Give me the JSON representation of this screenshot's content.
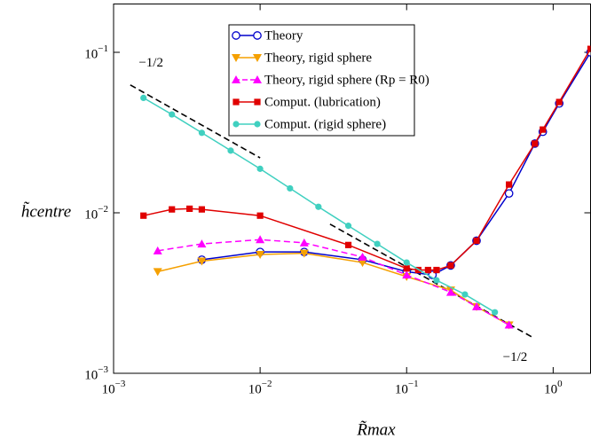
{
  "chart_data": {
    "type": "line",
    "x_label": "R̃max",
    "y_label": "h̃centre",
    "log_x": true,
    "log_y": true,
    "xlim": [
      0.001,
      1.8
    ],
    "ylim": [
      0.001,
      0.2
    ],
    "xticks": [
      {
        "value": 0.001,
        "label": "10−3"
      },
      {
        "value": 0.01,
        "label": "10−2"
      },
      {
        "value": 0.1,
        "label": "10−1"
      },
      {
        "value": 1,
        "label": "100"
      }
    ],
    "yticks": [
      {
        "value": 0.001,
        "label": "10−3"
      },
      {
        "value": 0.01,
        "label": "10−2"
      },
      {
        "value": 0.1,
        "label": "10−1"
      }
    ],
    "series": [
      {
        "name": "Theory",
        "color": "#0000cc",
        "marker": "circle-open",
        "dashed": false,
        "x": [
          0.004,
          0.01,
          0.02,
          0.05,
          0.1,
          0.15,
          0.2,
          0.3,
          0.5,
          0.75,
          0.85,
          1.1,
          1.8
        ],
        "values": [
          0.0051,
          0.0057,
          0.0057,
          0.0051,
          0.0043,
          0.0041,
          0.0047,
          0.0067,
          0.0132,
          0.027,
          0.032,
          0.048,
          0.1
        ]
      },
      {
        "name": "Theory, rigid sphere",
        "color": "#f5a000",
        "marker": "triangle-down",
        "dashed": false,
        "x": [
          0.002,
          0.004,
          0.01,
          0.02,
          0.05,
          0.1,
          0.2,
          0.3,
          0.5
        ],
        "values": [
          0.0043,
          0.005,
          0.0055,
          0.0056,
          0.0049,
          0.004,
          0.0033,
          0.0026,
          0.002
        ]
      },
      {
        "name": "Theory, rigid sphere (Rp = R0)",
        "color": "#ff00ff",
        "marker": "triangle-up",
        "dashed": true,
        "x": [
          0.002,
          0.004,
          0.01,
          0.02,
          0.05,
          0.1,
          0.2,
          0.3,
          0.5
        ],
        "values": [
          0.0058,
          0.0064,
          0.0068,
          0.0065,
          0.0053,
          0.0041,
          0.0032,
          0.0026,
          0.002
        ]
      },
      {
        "name": "Comput. (lubrication)",
        "color": "#e00000",
        "marker": "square",
        "dashed": false,
        "x": [
          0.0016,
          0.0025,
          0.0033,
          0.004,
          0.01,
          0.04,
          0.1,
          0.12,
          0.14,
          0.16,
          0.2,
          0.3,
          0.5,
          0.75,
          0.85,
          1.1,
          1.8
        ],
        "values": [
          0.0096,
          0.0105,
          0.0106,
          0.0105,
          0.0096,
          0.0063,
          0.0045,
          0.0044,
          0.0044,
          0.0044,
          0.0047,
          0.0067,
          0.015,
          0.027,
          0.033,
          0.049,
          0.105
        ]
      },
      {
        "name": "Comput. (rigid sphere)",
        "color": "#40d0c0",
        "marker": "circle",
        "dashed": false,
        "x": [
          0.0016,
          0.0025,
          0.004,
          0.0063,
          0.01,
          0.016,
          0.025,
          0.04,
          0.063,
          0.1,
          0.16,
          0.25,
          0.4
        ],
        "values": [
          0.052,
          0.041,
          0.0315,
          0.0244,
          0.0188,
          0.0142,
          0.0109,
          0.0083,
          0.0064,
          0.0049,
          0.0038,
          0.0031,
          0.0024
        ]
      }
    ],
    "reference_lines": [
      {
        "x": [
          0.0013,
          0.01
        ],
        "values": [
          0.0626,
          0.022
        ]
      },
      {
        "x": [
          0.03,
          0.72
        ],
        "values": [
          0.0085,
          0.00168
        ]
      }
    ],
    "annotations": [
      {
        "text": "−1/2",
        "x": 0.0018,
        "y": 0.085
      },
      {
        "text": "−1/2",
        "x": 0.55,
        "y": 0.00125
      }
    ]
  }
}
